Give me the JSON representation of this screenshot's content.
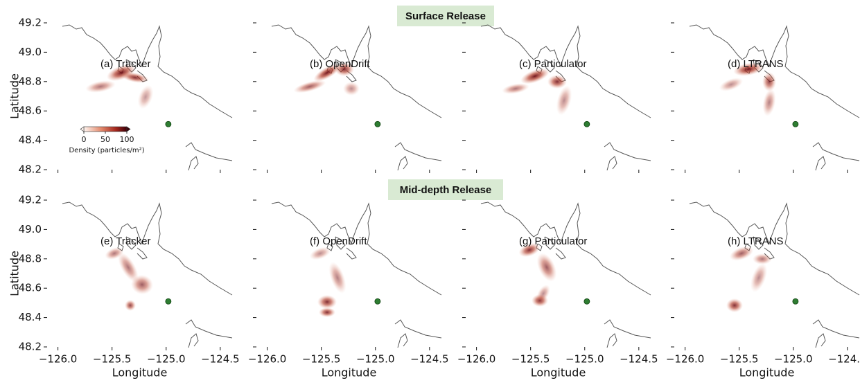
{
  "chart_data": [
    {
      "type": "map",
      "label": "(a) Tracker"
    },
    {
      "type": "map",
      "label": "(b) OpenDrift"
    },
    {
      "type": "map",
      "label": "(c) Particulator"
    },
    {
      "type": "map",
      "label": "(d) LTRANS"
    },
    {
      "type": "map",
      "label": "(e) Tracker"
    },
    {
      "type": "map",
      "label": "(f) OpenDrift"
    },
    {
      "type": "map",
      "label": "(g) Particulator"
    },
    {
      "type": "map",
      "label": "(h) LTRANS"
    }
  ],
  "rows": [
    "Surface Release",
    "Mid-depth Release"
  ],
  "axes": {
    "xlabel": "Longitude",
    "ylabel": "Latitude",
    "xlim": [
      -126.1,
      -124.39
    ],
    "ylim": [
      48.2,
      49.2
    ],
    "xticks": [
      {
        "value": -126.0,
        "label": "−126.0"
      },
      {
        "value": -125.5,
        "label": "−125.5"
      },
      {
        "value": -125.0,
        "label": "−125.0"
      },
      {
        "value": -124.5,
        "label": "−124.5"
      }
    ],
    "yticks": [
      48.2,
      48.4,
      48.6,
      48.8,
      {
        "value": 49.0,
        "label": "49.0"
      },
      49.2
    ]
  },
  "site": {
    "x": -124.98,
    "y": 48.51,
    "color": "#2e7d32"
  },
  "colorbar": {
    "label": "Density (particles/m²)",
    "lim": [
      0,
      100
    ],
    "ticks": [
      0,
      50,
      100
    ]
  }
}
